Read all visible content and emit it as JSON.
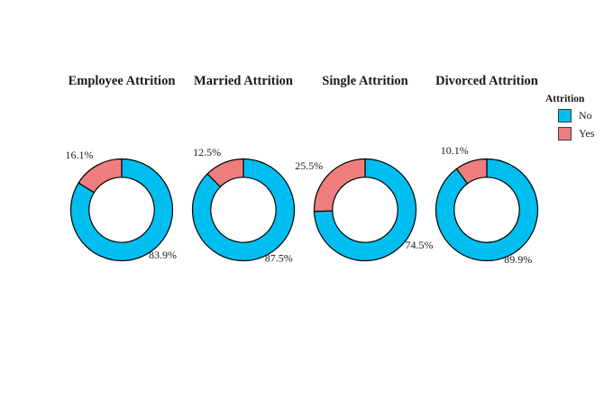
{
  "canvas": {
    "background": "#ffffff"
  },
  "colors": {
    "no": "#00bff0",
    "yes": "#ee7e7e",
    "outline": "#000000",
    "text": "#1a1a1a"
  },
  "legend": {
    "title": "Attrition",
    "position": "top-right",
    "items": [
      {
        "label": "No",
        "color_key": "no"
      },
      {
        "label": "Yes",
        "color_key": "yes"
      }
    ]
  },
  "chart_data": [
    {
      "type": "pie",
      "subtype": "donut",
      "title": "Employee Attrition",
      "categories": [
        "No",
        "Yes"
      ],
      "values": [
        83.9,
        16.1
      ],
      "data_labels": [
        "83.9%",
        "16.1%"
      ],
      "unit": "%",
      "start_angle_deg": 0,
      "clockwise": true,
      "hole_ratio": 0.64
    },
    {
      "type": "pie",
      "subtype": "donut",
      "title": "Married Attrition",
      "categories": [
        "No",
        "Yes"
      ],
      "values": [
        87.5,
        12.5
      ],
      "data_labels": [
        "87.5%",
        "12.5%"
      ],
      "unit": "%",
      "start_angle_deg": 0,
      "clockwise": true,
      "hole_ratio": 0.64
    },
    {
      "type": "pie",
      "subtype": "donut",
      "title": "Single Attrition",
      "categories": [
        "No",
        "Yes"
      ],
      "values": [
        74.5,
        25.5
      ],
      "data_labels": [
        "74.5%",
        "25.5%"
      ],
      "unit": "%",
      "start_angle_deg": 0,
      "clockwise": true,
      "hole_ratio": 0.64
    },
    {
      "type": "pie",
      "subtype": "donut",
      "title": "Divorced Attrition",
      "categories": [
        "No",
        "Yes"
      ],
      "values": [
        89.9,
        10.1
      ],
      "data_labels": [
        "89.9%",
        "10.1%"
      ],
      "unit": "%",
      "start_angle_deg": 0,
      "clockwise": true,
      "hole_ratio": 0.64
    }
  ]
}
